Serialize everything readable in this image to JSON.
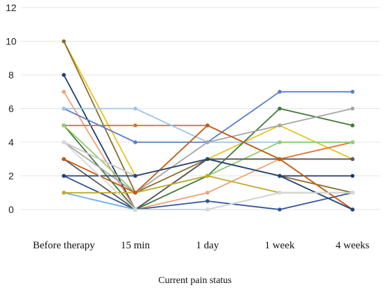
{
  "chart_data": {
    "type": "line",
    "title": "",
    "xlabel": "Current pain status",
    "ylabel": "",
    "categories": [
      "Before therapy",
      "15 min",
      "1 day",
      "1 week",
      "4 weeks"
    ],
    "ylim": [
      0,
      12
    ],
    "yticks": [
      0,
      2,
      4,
      6,
      8,
      10,
      12
    ],
    "grid": true,
    "legend": "none",
    "series": [
      {
        "color": "#e8c21c",
        "values": [
          10,
          2,
          3,
          5,
          3
        ]
      },
      {
        "color": "#8a6a2c",
        "values": [
          10,
          1,
          3,
          2,
          1
        ]
      },
      {
        "color": "#1f3a73",
        "values": [
          8,
          0,
          3,
          2,
          2
        ]
      },
      {
        "color": "#f0a07a",
        "values": [
          7,
          0,
          1,
          3,
          0
        ]
      },
      {
        "color": "#e07030",
        "values": [
          5,
          5,
          5,
          3,
          4
        ]
      },
      {
        "color": "#5b7fc9",
        "values": [
          6,
          4,
          4,
          7,
          7
        ]
      },
      {
        "color": "#9fc6ea",
        "values": [
          6,
          6,
          4,
          4,
          4
        ]
      },
      {
        "color": "#3e7a36",
        "values": [
          5,
          0,
          2,
          6,
          5
        ]
      },
      {
        "color": "#8fce6e",
        "values": [
          5,
          1,
          2,
          4,
          4
        ]
      },
      {
        "color": "#a5a5a5",
        "values": [
          4,
          1,
          4,
          5,
          6
        ]
      },
      {
        "color": "#c9c9c9",
        "values": [
          4,
          2,
          3,
          3,
          3
        ]
      },
      {
        "color": "#5a5a5a",
        "values": [
          3,
          0,
          3,
          3,
          3
        ]
      },
      {
        "color": "#2f5597",
        "values": [
          2,
          0,
          0.5,
          0,
          1
        ]
      },
      {
        "color": "#6aaee6",
        "values": [
          1,
          0,
          0,
          1,
          1
        ]
      },
      {
        "color": "#c0aa2e",
        "values": [
          1,
          1,
          2,
          1,
          1
        ]
      },
      {
        "color": "#c55a11",
        "values": [
          3,
          1,
          5,
          3,
          0
        ]
      },
      {
        "color": "#264478",
        "values": [
          2,
          2,
          3,
          2,
          0
        ]
      },
      {
        "color": "#d8d8d8",
        "values": [
          4,
          0,
          0,
          1,
          1
        ]
      }
    ]
  }
}
